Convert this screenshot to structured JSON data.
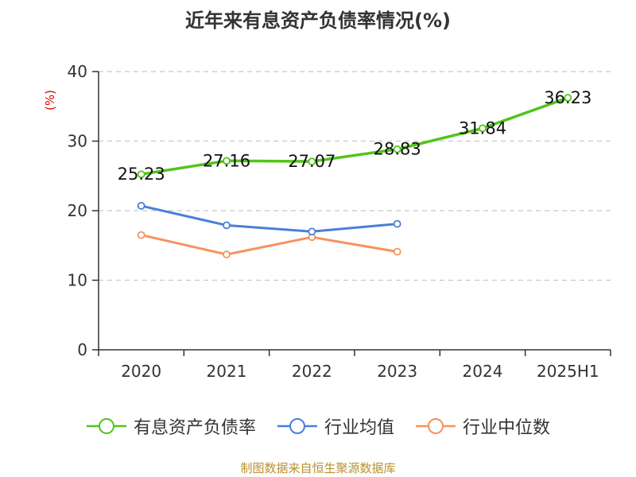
{
  "chart_data": {
    "type": "line",
    "title": "近年来有息资产负债率情况(%)",
    "ylabel": "(%)",
    "xlabel": "",
    "categories": [
      "2020",
      "2021",
      "2022",
      "2023",
      "2024",
      "2025H1"
    ],
    "ylim": [
      0,
      40
    ],
    "yticks": [
      0,
      10,
      20,
      30,
      40
    ],
    "grid": true,
    "legend_position": "bottom",
    "series": [
      {
        "name": "有息资产负债率",
        "color": "#52c41a",
        "values": [
          25.23,
          27.16,
          27.07,
          28.83,
          31.84,
          36.23
        ],
        "labels": [
          "25.23",
          "27.16",
          "27.07",
          "28.83",
          "31.84",
          "36.23"
        ]
      },
      {
        "name": "行业均值",
        "color": "#4a7fd8",
        "values": [
          20.7,
          17.9,
          17.0,
          18.1,
          null,
          null
        ]
      },
      {
        "name": "行业中位数",
        "color": "#f5925e",
        "values": [
          16.5,
          13.7,
          16.2,
          14.1,
          null,
          null
        ]
      }
    ]
  },
  "source_note": "制图数据来自恒生聚源数据库"
}
